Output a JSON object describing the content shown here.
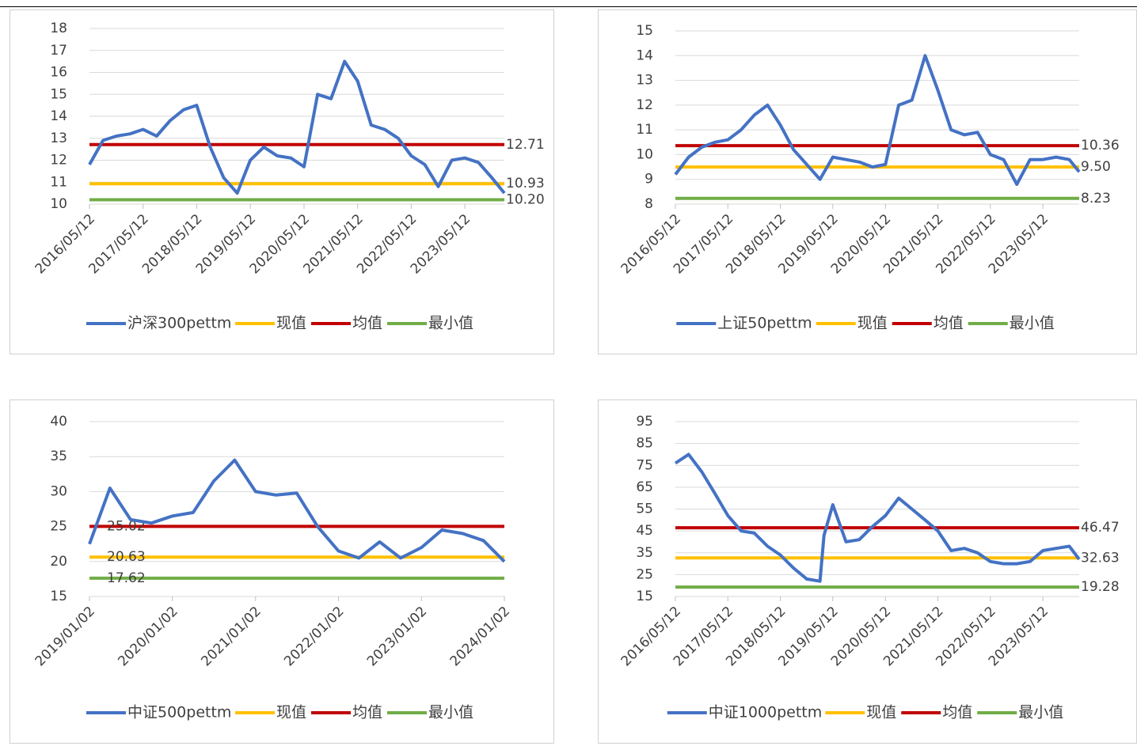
{
  "chart_data": [
    {
      "type": "line",
      "ref_labels": "right",
      "x": [
        "2016/05/12",
        "2016/08/12",
        "2016/11/12",
        "2017/02/12",
        "2017/05/12",
        "2017/08/12",
        "2017/11/12",
        "2018/02/12",
        "2018/05/12",
        "2018/08/12",
        "2018/11/12",
        "2019/02/12",
        "2019/05/12",
        "2019/08/12",
        "2019/11/12",
        "2020/02/12",
        "2020/05/12",
        "2020/08/12",
        "2020/11/12",
        "2021/02/12",
        "2021/05/12",
        "2021/08/12",
        "2021/11/12",
        "2022/02/12",
        "2022/05/12",
        "2022/08/12",
        "2022/11/12",
        "2023/02/12",
        "2023/05/12",
        "2023/08/12",
        "2023/11/12",
        "2024/02/05"
      ],
      "xlim": [
        "2016/05/12",
        "2024/02/05"
      ],
      "xticks": [
        "2016/05/12",
        "2017/05/12",
        "2018/05/12",
        "2019/05/12",
        "2020/05/12",
        "2021/05/12",
        "2022/05/12",
        "2023/05/12"
      ],
      "ylim": [
        10,
        18
      ],
      "yticks": [
        10,
        11,
        12,
        13,
        14,
        15,
        16,
        17,
        18
      ],
      "grid": true,
      "series": [
        {
          "name": "沪深300pettm",
          "color": "#4472c4",
          "values": [
            11.8,
            12.9,
            13.1,
            13.2,
            13.4,
            13.1,
            13.8,
            14.3,
            14.5,
            12.6,
            11.2,
            10.5,
            12.0,
            12.6,
            12.2,
            12.1,
            11.7,
            15.0,
            14.8,
            16.5,
            15.6,
            13.6,
            13.4,
            13.0,
            12.2,
            11.8,
            10.8,
            12.0,
            12.1,
            11.9,
            11.2,
            10.5
          ]
        },
        {
          "name": "现值",
          "color": "#ffc000",
          "value": 10.93,
          "label": "10.93"
        },
        {
          "name": "均值",
          "color": "#c00000",
          "value": 12.71,
          "label": "12.71"
        },
        {
          "name": "最小值",
          "color": "#70ad47",
          "value": 10.2,
          "label": "10.20"
        }
      ]
    },
    {
      "type": "line",
      "ref_labels": "right",
      "x": [
        "2016/05/12",
        "2016/08/12",
        "2016/11/12",
        "2017/02/12",
        "2017/05/12",
        "2017/08/12",
        "2017/11/12",
        "2018/02/12",
        "2018/05/12",
        "2018/08/12",
        "2018/11/12",
        "2019/02/12",
        "2019/05/12",
        "2019/08/12",
        "2019/11/12",
        "2020/02/12",
        "2020/05/12",
        "2020/08/12",
        "2020/11/12",
        "2021/02/12",
        "2021/05/12",
        "2021/08/12",
        "2021/11/12",
        "2022/02/12",
        "2022/05/12",
        "2022/08/12",
        "2022/11/12",
        "2023/02/12",
        "2023/05/12",
        "2023/08/12",
        "2023/11/12",
        "2024/01/20"
      ],
      "xlim": [
        "2016/05/12",
        "2024/01/20"
      ],
      "xticks": [
        "2016/05/12",
        "2017/05/12",
        "2018/05/12",
        "2019/05/12",
        "2020/05/12",
        "2021/05/12",
        "2022/05/12",
        "2023/05/12"
      ],
      "ylim": [
        8,
        15
      ],
      "yticks": [
        8,
        9,
        10,
        11,
        12,
        13,
        14,
        15
      ],
      "grid": true,
      "series": [
        {
          "name": "上证50pettm",
          "color": "#4472c4",
          "values": [
            9.2,
            9.9,
            10.3,
            10.5,
            10.6,
            11.0,
            11.6,
            12.0,
            11.2,
            10.2,
            9.6,
            9.0,
            9.9,
            9.8,
            9.7,
            9.5,
            9.6,
            12.0,
            12.2,
            14.0,
            12.6,
            11.0,
            10.8,
            10.9,
            10.0,
            9.8,
            8.8,
            9.8,
            9.8,
            9.9,
            9.8,
            9.3
          ]
        },
        {
          "name": "现值",
          "color": "#ffc000",
          "value": 9.5,
          "label": "9.50"
        },
        {
          "name": "均值",
          "color": "#c00000",
          "value": 10.36,
          "label": "10.36"
        },
        {
          "name": "最小值",
          "color": "#70ad47",
          "value": 8.23,
          "label": "8.23"
        }
      ]
    },
    {
      "type": "line",
      "ref_labels": "left",
      "x": [
        "2019/01/02",
        "2019/04/02",
        "2019/07/02",
        "2019/10/02",
        "2020/01/02",
        "2020/04/02",
        "2020/07/02",
        "2020/10/02",
        "2021/01/02",
        "2021/04/02",
        "2021/07/02",
        "2021/10/02",
        "2022/01/02",
        "2022/04/02",
        "2022/07/02",
        "2022/10/02",
        "2023/01/02",
        "2023/04/02",
        "2023/07/02",
        "2023/10/02",
        "2024/01/02"
      ],
      "xlim": [
        "2019/01/02",
        "2024/01/02"
      ],
      "xticks": [
        "2019/01/02",
        "2020/01/02",
        "2021/01/02",
        "2022/01/02",
        "2023/01/02",
        "2024/01/02"
      ],
      "ylim": [
        15,
        40
      ],
      "yticks": [
        15,
        20,
        25,
        30,
        35,
        40
      ],
      "grid": true,
      "series": [
        {
          "name": "中证500pettm",
          "color": "#4472c4",
          "values": [
            22.5,
            30.5,
            26.0,
            25.5,
            26.5,
            27.0,
            31.5,
            34.5,
            30.0,
            29.5,
            29.8,
            25.0,
            21.5,
            20.5,
            22.8,
            20.5,
            22.0,
            24.5,
            24.0,
            23.0,
            20.0
          ]
        },
        {
          "name": "现值",
          "color": "#ffc000",
          "value": 20.63,
          "label": "20.63"
        },
        {
          "name": "均值",
          "color": "#c00000",
          "value": 25.02,
          "label": "25.02"
        },
        {
          "name": "最小值",
          "color": "#70ad47",
          "value": 17.62,
          "label": "17.62"
        }
      ]
    },
    {
      "type": "line",
      "ref_labels": "right",
      "x": [
        "2016/05/12",
        "2016/08/12",
        "2016/11/12",
        "2017/02/12",
        "2017/05/12",
        "2017/08/12",
        "2017/11/12",
        "2018/02/12",
        "2018/05/12",
        "2018/08/12",
        "2018/11/12",
        "2019/02/12",
        "2019/03/12",
        "2019/05/12",
        "2019/08/12",
        "2019/11/12",
        "2020/02/12",
        "2020/05/12",
        "2020/08/12",
        "2020/11/12",
        "2021/02/12",
        "2021/05/12",
        "2021/08/12",
        "2021/11/12",
        "2022/02/12",
        "2022/05/12",
        "2022/08/12",
        "2022/11/12",
        "2023/02/12",
        "2023/05/12",
        "2023/08/12",
        "2023/11/12",
        "2024/01/20"
      ],
      "xlim": [
        "2016/05/12",
        "2024/01/20"
      ],
      "xticks": [
        "2016/05/12",
        "2017/05/12",
        "2018/05/12",
        "2019/05/12",
        "2020/05/12",
        "2021/05/12",
        "2022/05/12",
        "2023/05/12"
      ],
      "ylim": [
        15,
        95
      ],
      "yticks": [
        15,
        25,
        35,
        45,
        55,
        65,
        75,
        85,
        95
      ],
      "grid": true,
      "series": [
        {
          "name": "中证1000pettm",
          "color": "#4472c4",
          "values": [
            76,
            80,
            72,
            62,
            52,
            45,
            44,
            38,
            34,
            28,
            23,
            22,
            43,
            57,
            40,
            41,
            47,
            52,
            60,
            55,
            50,
            45,
            36,
            37,
            35,
            31,
            30,
            30,
            31,
            36,
            37,
            38,
            32
          ]
        },
        {
          "name": "现值",
          "color": "#ffc000",
          "value": 32.63,
          "label": "32.63"
        },
        {
          "name": "均值",
          "color": "#c00000",
          "value": 46.47,
          "label": "46.47"
        },
        {
          "name": "最小值",
          "color": "#70ad47",
          "value": 19.28,
          "label": "19.28"
        }
      ]
    }
  ]
}
